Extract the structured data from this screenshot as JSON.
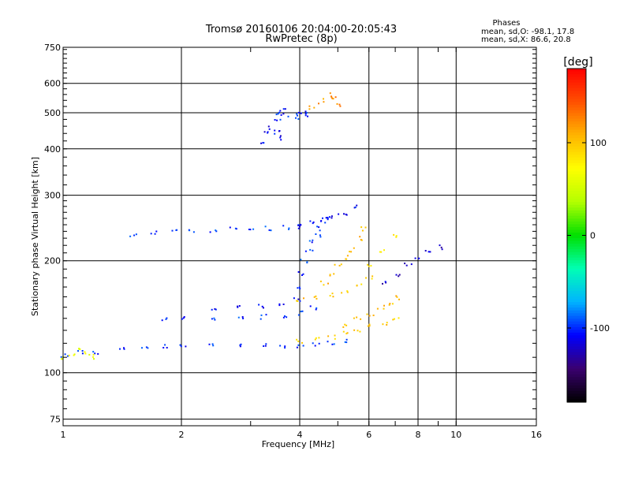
{
  "chart_data": {
    "type": "scatter",
    "title": "Tromsø 20160106 20:04:00-20:05:43",
    "subtitle": "RwPretec (8p)",
    "xlabel": "Frequency [MHz]",
    "ylabel": "Stationary phase Virtual Height [km]",
    "x_scale": "log",
    "y_scale": "log",
    "xlim": [
      1,
      16
    ],
    "ylim": [
      72,
      750
    ],
    "x_ticks": [
      1,
      2,
      4,
      6,
      8,
      10,
      16
    ],
    "y_ticks": [
      75,
      100,
      200,
      300,
      400,
      500,
      600,
      750
    ],
    "grid": true,
    "phase_header": "Phases",
    "phase_stats": [
      "mean, sd,O: -98.1, 17.8",
      "mean, sd,X:  86.6, 20.8"
    ],
    "colorbar": {
      "label": "[deg]",
      "range": [
        -180,
        180
      ],
      "ticks": [
        -100,
        0,
        100
      ],
      "stops": [
        "#000000",
        "#3a0070",
        "#0000ff",
        "#00b4ff",
        "#00ffb4",
        "#00e000",
        "#b4ff00",
        "#ffff00",
        "#ffb400",
        "#ff5000",
        "#ff0000"
      ]
    },
    "traces": [
      {
        "x": [
          1.0,
          1.1,
          1.2,
          1.4,
          1.6,
          1.8,
          2.0,
          2.4,
          2.8,
          3.2,
          3.6,
          4.0,
          4.4,
          4.8,
          5.2
        ],
        "y": [
          112,
          114,
          114,
          116,
          117,
          118,
          118,
          119,
          119,
          119,
          119,
          119,
          120,
          121,
          122
        ],
        "phase": -100
      },
      {
        "x": [
          1.0,
          1.05,
          1.1,
          1.15,
          1.2
        ],
        "y": [
          110,
          112,
          115,
          113,
          111
        ],
        "phase": 60
      },
      {
        "x": [
          1.8,
          2.0,
          2.4,
          2.8,
          3.2,
          3.6,
          4.0,
          4.3
        ],
        "y": [
          140,
          140,
          140,
          141,
          142,
          143,
          145,
          150
        ],
        "phase": -100
      },
      {
        "x": [
          2.4,
          2.8,
          3.2,
          3.6,
          3.9
        ],
        "y": [
          150,
          150,
          152,
          154,
          158
        ],
        "phase": -110
      },
      {
        "x": [
          3.9,
          4.0,
          4.1,
          4.2,
          4.3,
          4.4,
          4.5,
          4.6,
          4.7
        ],
        "y": [
          170,
          185,
          200,
          215,
          225,
          235,
          245,
          255,
          265
        ],
        "phase": -100
      },
      {
        "x": [
          4.0,
          4.4,
          4.8,
          5.2,
          5.6,
          6.0,
          6.5,
          7.0
        ],
        "y": [
          122,
          123,
          125,
          128,
          131,
          134,
          137,
          140
        ],
        "phase": 95
      },
      {
        "x": [
          4.0,
          4.4,
          4.8,
          5.2,
          5.6,
          6.0
        ],
        "y": [
          158,
          160,
          163,
          167,
          172,
          180
        ],
        "phase": 100
      },
      {
        "x": [
          4.6,
          4.8,
          5.0,
          5.2,
          5.4,
          5.6,
          5.8
        ],
        "y": [
          175,
          185,
          195,
          205,
          215,
          230,
          245
        ],
        "phase": 105
      },
      {
        "x": [
          5.2,
          5.6,
          6.0,
          6.4,
          6.8,
          7.0
        ],
        "y": [
          135,
          140,
          145,
          150,
          155,
          160
        ],
        "phase": 100
      },
      {
        "x": [
          1.5,
          1.7,
          1.9,
          2.1,
          2.4,
          2.7,
          3.0,
          3.3,
          3.7,
          4.0
        ],
        "y": [
          235,
          238,
          240,
          242,
          243,
          244,
          245,
          245,
          246,
          248
        ],
        "phase": -100
      },
      {
        "x": [
          4.0,
          4.3,
          4.6,
          4.9,
          5.2,
          5.5
        ],
        "y": [
          250,
          255,
          260,
          265,
          270,
          280
        ],
        "phase": -105
      },
      {
        "x": [
          3.2,
          3.3,
          3.4,
          3.5,
          3.6
        ],
        "y": [
          420,
          440,
          455,
          445,
          430
        ],
        "phase": -110
      },
      {
        "x": [
          3.5,
          3.55,
          3.6,
          3.65
        ],
        "y": [
          480,
          500,
          510,
          495
        ],
        "phase": -105
      },
      {
        "x": [
          3.9,
          4.0,
          4.1,
          4.2
        ],
        "y": [
          490,
          500,
          505,
          495
        ],
        "phase": -100
      },
      {
        "x": [
          4.3,
          4.5,
          4.7,
          4.9,
          5.0
        ],
        "y": [
          520,
          540,
          560,
          550,
          530
        ],
        "phase": 120
      },
      {
        "x": [
          6.5,
          7.0,
          7.5,
          8.0,
          8.5,
          9.0
        ],
        "y": [
          175,
          185,
          195,
          205,
          212,
          218
        ],
        "phase": -120
      },
      {
        "x": [
          6.0,
          6.5,
          7.0
        ],
        "y": [
          195,
          215,
          235
        ],
        "phase": 80
      }
    ]
  }
}
